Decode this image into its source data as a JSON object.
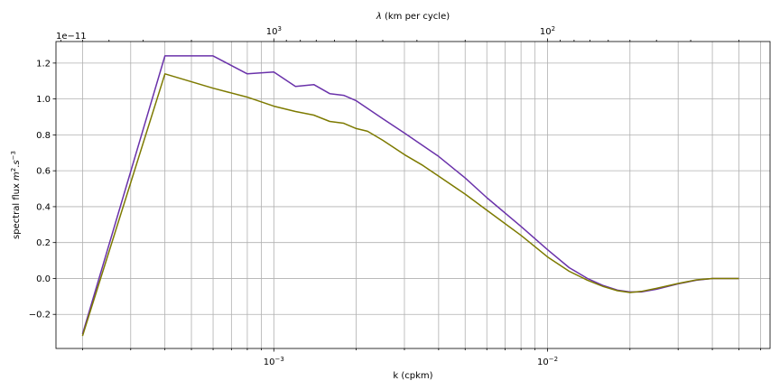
{
  "chart_data": {
    "type": "line",
    "xlabel": "k (cpkm)",
    "ylabel": "spectral flux m²·s⁻³",
    "ylabel_parts": [
      "spectral flux ",
      "m",
      "2",
      ".",
      "s",
      "−3"
    ],
    "top_xlabel": "λ (km per cycle)",
    "offset_text": "1e−11",
    "xscale": "log",
    "xlim": [
      0.00016,
      0.065
    ],
    "ylim": [
      -0.39,
      1.32
    ],
    "y_multiplier": 1e-11,
    "yticks": [
      -0.2,
      0.0,
      0.2,
      0.4,
      0.6,
      0.8,
      1.0,
      1.2
    ],
    "ytick_labels": [
      "−0.2",
      "0.0",
      "0.2",
      "0.4",
      "0.6",
      "0.8",
      "1.0",
      "1.2"
    ],
    "xticks_major": [
      0.001,
      0.01
    ],
    "xtick_labels_bottom": [
      "10",
      "10"
    ],
    "xtick_exponents_bottom": [
      "−3",
      "−2"
    ],
    "xticks_top_lambda": [
      1000,
      100
    ],
    "xtick_labels_top": [
      "10",
      "10"
    ],
    "xtick_exponents_top": [
      "3",
      "2"
    ],
    "grid": true,
    "colors": {
      "series_1": "#6a32aa",
      "series_2": "#7d7a00"
    },
    "series": [
      {
        "color": "#6a32aa",
        "x": [
          0.0002,
          0.0004,
          0.0006,
          0.0008,
          0.001,
          0.0012,
          0.0014,
          0.0016,
          0.0018,
          0.002,
          0.0025,
          0.003,
          0.0035,
          0.004,
          0.005,
          0.006,
          0.008,
          0.01,
          0.012,
          0.014,
          0.016,
          0.018,
          0.02,
          0.022,
          0.025,
          0.03,
          0.035,
          0.04,
          0.05
        ],
        "y": [
          -0.31,
          1.24,
          1.24,
          1.14,
          1.15,
          1.07,
          1.08,
          1.03,
          1.02,
          0.99,
          0.89,
          0.81,
          0.74,
          0.68,
          0.56,
          0.45,
          0.29,
          0.16,
          0.06,
          0.0,
          -0.04,
          -0.065,
          -0.075,
          -0.075,
          -0.06,
          -0.03,
          -0.01,
          0.0,
          0.0
        ]
      },
      {
        "color": "#7d7a00",
        "x": [
          0.0002,
          0.0004,
          0.0006,
          0.0008,
          0.001,
          0.0012,
          0.0014,
          0.0016,
          0.0018,
          0.002,
          0.0022,
          0.0025,
          0.003,
          0.0035,
          0.004,
          0.005,
          0.006,
          0.008,
          0.01,
          0.012,
          0.014,
          0.016,
          0.018,
          0.02,
          0.022,
          0.025,
          0.03,
          0.035,
          0.04,
          0.05
        ],
        "y": [
          -0.32,
          1.14,
          1.06,
          1.01,
          0.96,
          0.93,
          0.91,
          0.875,
          0.865,
          0.835,
          0.82,
          0.77,
          0.69,
          0.63,
          0.57,
          0.47,
          0.38,
          0.24,
          0.12,
          0.04,
          -0.01,
          -0.045,
          -0.068,
          -0.078,
          -0.072,
          -0.055,
          -0.028,
          -0.008,
          0.0,
          0.0
        ]
      }
    ]
  }
}
